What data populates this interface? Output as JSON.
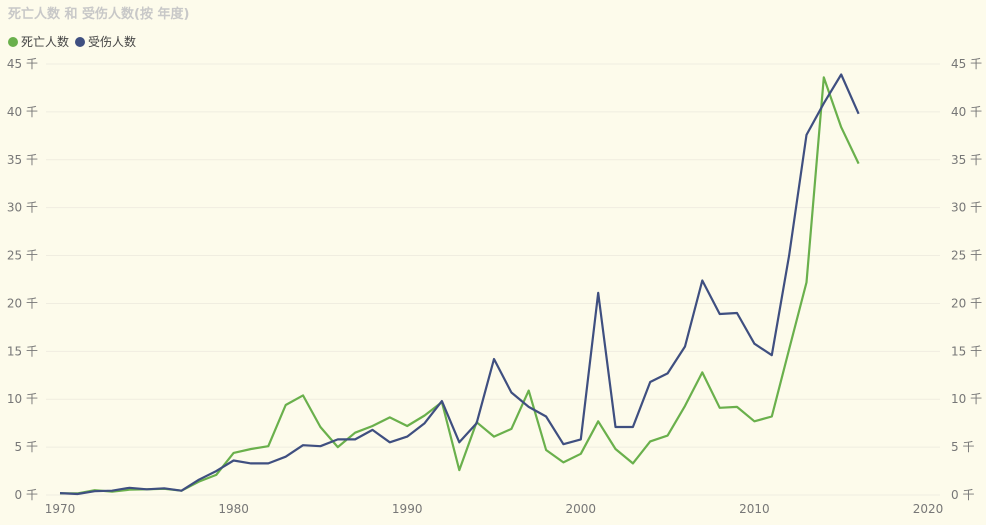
{
  "title": "死亡人数 和 受伤人数(按 年度)",
  "chart_data": {
    "type": "line",
    "title": "死亡人数 和 受伤人数(按 年度)",
    "x_ticks": [
      "1970",
      "1980",
      "1990",
      "2000",
      "2010",
      "2020"
    ],
    "y_ticks": [
      "0 千",
      "5 千",
      "10 千",
      "15 千",
      "20 千",
      "25 千",
      "30 千",
      "35 千",
      "40 千",
      "45 千"
    ],
    "xlim": [
      1970,
      2020
    ],
    "ylim": [
      0,
      45000
    ],
    "grid": true,
    "legend_position": "top-left",
    "x": [
      1970,
      1971,
      1972,
      1973,
      1974,
      1975,
      1976,
      1977,
      1978,
      1979,
      1980,
      1981,
      1982,
      1983,
      1984,
      1985,
      1986,
      1987,
      1988,
      1989,
      1990,
      1991,
      1992,
      1993,
      1994,
      1995,
      1996,
      1997,
      1998,
      1999,
      2000,
      2001,
      2002,
      2003,
      2004,
      2005,
      2006,
      2007,
      2008,
      2009,
      2010,
      2011,
      2012,
      2013,
      2014,
      2015,
      2016
    ],
    "series": [
      {
        "name": "死亡人数",
        "color": "#6ab04c",
        "values": [
          170,
          170,
          500,
          350,
          550,
          600,
          650,
          450,
          1400,
          2100,
          4400,
          4800,
          5100,
          9400,
          10400,
          7100,
          5000,
          6500,
          7200,
          8100,
          7200,
          8300,
          9700,
          2600,
          7600,
          6100,
          6900,
          10900,
          4700,
          3400,
          4300,
          7700,
          4800,
          3300,
          5600,
          6200,
          9300,
          12800,
          9100,
          9200,
          7700,
          8200,
          15200,
          22200,
          43600,
          38400,
          34600
        ]
      },
      {
        "name": "受伤人数",
        "color": "#3f4f80",
        "values": [
          200,
          100,
          400,
          450,
          750,
          600,
          700,
          450,
          1600,
          2500,
          3600,
          3300,
          3300,
          4000,
          5200,
          5100,
          5800,
          5800,
          6800,
          5500,
          6100,
          7500,
          9800,
          5500,
          7500,
          14200,
          10700,
          9200,
          8200,
          5300,
          5800,
          21100,
          7100,
          7100,
          11800,
          12700,
          15500,
          22400,
          18900,
          19000,
          15800,
          14600,
          25000,
          37600,
          40900,
          43900,
          39800
        ]
      }
    ]
  }
}
